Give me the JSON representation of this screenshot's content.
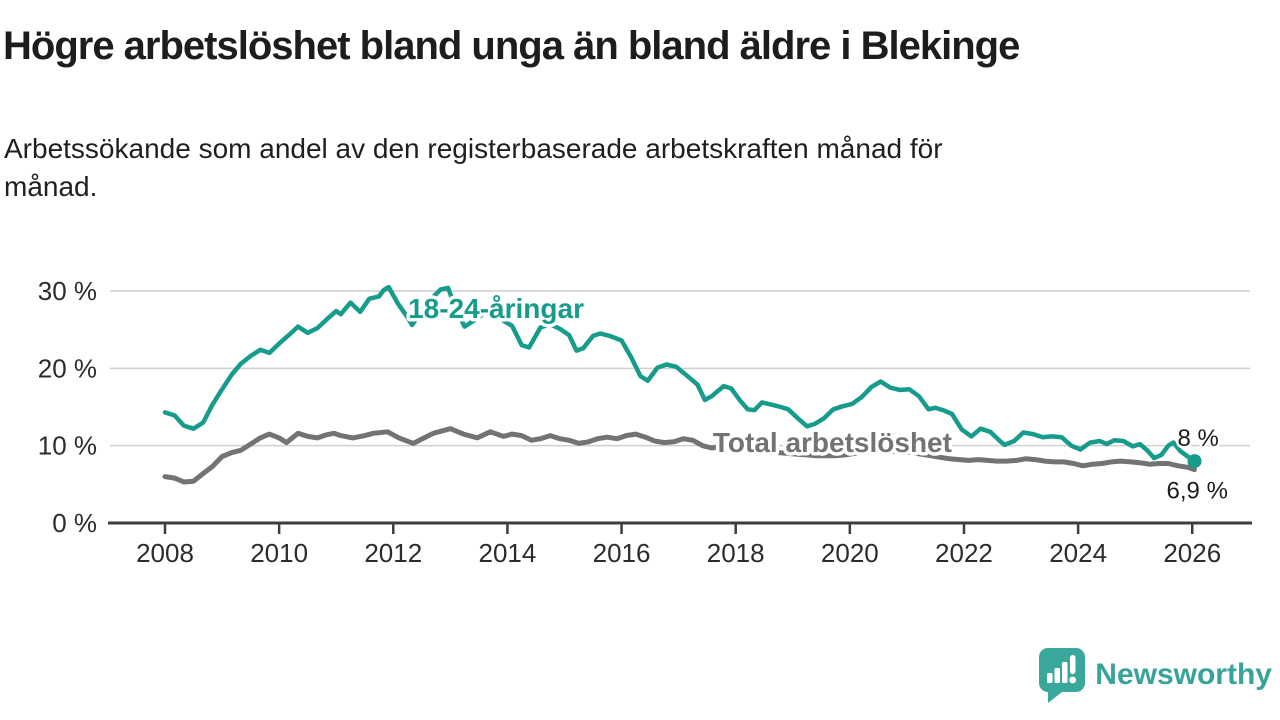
{
  "header": {
    "title": "Högre arbetslöshet bland unga än bland äldre i Blekinge",
    "subtitle_line1": "Arbetssökande som andel av den registerbaserade arbetskraften månad för",
    "subtitle_line2": "månad."
  },
  "footer": {
    "brand": "Newsworthy",
    "logo_icon": "bar-chart-speech-bubble"
  },
  "colors": {
    "young_series": "#179b8b",
    "total_series": "#737373",
    "grid": "#cfcfcf",
    "axis": "#3d3d3d",
    "tick_text": "#2c2c2c",
    "value_label_text": "#1c1c1c",
    "brand_teal": "#3aa79b"
  },
  "chart_data": {
    "type": "line",
    "title": "Högre arbetslöshet bland unga än bland äldre i Blekinge",
    "xlabel": "",
    "ylabel": "",
    "xlim": [
      2007.9,
      2027.0
    ],
    "ylim": [
      0,
      32
    ],
    "grid": "horizontal",
    "legend_position": "inline-labels",
    "x_ticks": [
      {
        "value": 2008,
        "label": "2008"
      },
      {
        "value": 2010,
        "label": "2010"
      },
      {
        "value": 2012,
        "label": "2012"
      },
      {
        "value": 2014,
        "label": "2014"
      },
      {
        "value": 2016,
        "label": "2016"
      },
      {
        "value": 2018,
        "label": "2018"
      },
      {
        "value": 2020,
        "label": "2020"
      },
      {
        "value": 2022,
        "label": "2022"
      },
      {
        "value": 2024,
        "label": "2024"
      },
      {
        "value": 2026,
        "label": "2026"
      }
    ],
    "y_ticks": [
      {
        "value": 0,
        "label": "0 %"
      },
      {
        "value": 10,
        "label": "10 %"
      },
      {
        "value": 20,
        "label": "20 %"
      },
      {
        "value": 30,
        "label": "30 %"
      }
    ],
    "series": [
      {
        "name": "Total arbetslöshet",
        "color": "#737373",
        "line_width": 5,
        "end_value": 6.9,
        "end_label": "6,9 %",
        "end_label_offset": [
          -28,
          29
        ],
        "end_dot": false,
        "label_pos": [
          2017.6,
          9.2
        ],
        "points": [
          [
            2008.0,
            6.0
          ],
          [
            2008.17,
            5.8
          ],
          [
            2008.33,
            5.3
          ],
          [
            2008.5,
            5.4
          ],
          [
            2008.67,
            6.4
          ],
          [
            2008.83,
            7.3
          ],
          [
            2009.0,
            8.6
          ],
          [
            2009.17,
            9.1
          ],
          [
            2009.33,
            9.4
          ],
          [
            2009.5,
            10.2
          ],
          [
            2009.67,
            11.0
          ],
          [
            2009.83,
            11.5
          ],
          [
            2010.0,
            11.0
          ],
          [
            2010.13,
            10.4
          ],
          [
            2010.33,
            11.6
          ],
          [
            2010.5,
            11.2
          ],
          [
            2010.67,
            11.0
          ],
          [
            2010.83,
            11.4
          ],
          [
            2010.96,
            11.6
          ],
          [
            2011.08,
            11.3
          ],
          [
            2011.29,
            11.0
          ],
          [
            2011.5,
            11.3
          ],
          [
            2011.65,
            11.6
          ],
          [
            2011.9,
            11.8
          ],
          [
            2012.1,
            11.0
          ],
          [
            2012.35,
            10.3
          ],
          [
            2012.54,
            11.0
          ],
          [
            2012.7,
            11.6
          ],
          [
            2013.0,
            12.2
          ],
          [
            2013.23,
            11.5
          ],
          [
            2013.47,
            11.0
          ],
          [
            2013.7,
            11.8
          ],
          [
            2013.93,
            11.2
          ],
          [
            2014.08,
            11.5
          ],
          [
            2014.25,
            11.3
          ],
          [
            2014.42,
            10.7
          ],
          [
            2014.58,
            10.9
          ],
          [
            2014.75,
            11.3
          ],
          [
            2014.92,
            10.9
          ],
          [
            2015.08,
            10.7
          ],
          [
            2015.25,
            10.3
          ],
          [
            2015.42,
            10.5
          ],
          [
            2015.58,
            10.9
          ],
          [
            2015.75,
            11.1
          ],
          [
            2015.92,
            10.9
          ],
          [
            2016.08,
            11.3
          ],
          [
            2016.25,
            11.5
          ],
          [
            2016.42,
            11.1
          ],
          [
            2016.58,
            10.6
          ],
          [
            2016.75,
            10.4
          ],
          [
            2016.92,
            10.5
          ],
          [
            2017.08,
            10.9
          ],
          [
            2017.25,
            10.7
          ],
          [
            2017.42,
            10.0
          ],
          [
            2017.58,
            9.7
          ],
          [
            2017.75,
            9.9
          ],
          [
            2017.92,
            9.8
          ],
          [
            2018.08,
            9.6
          ],
          [
            2018.25,
            9.4
          ],
          [
            2018.42,
            9.3
          ],
          [
            2018.58,
            9.2
          ],
          [
            2018.75,
            9.1
          ],
          [
            2018.92,
            9.0
          ],
          [
            2019.08,
            8.9
          ],
          [
            2019.25,
            8.8
          ],
          [
            2019.42,
            8.7
          ],
          [
            2019.58,
            8.7
          ],
          [
            2019.75,
            8.7
          ],
          [
            2019.92,
            8.8
          ],
          [
            2020.08,
            9.0
          ],
          [
            2020.25,
            9.3
          ],
          [
            2020.42,
            9.5
          ],
          [
            2020.58,
            9.4
          ],
          [
            2020.75,
            9.3
          ],
          [
            2020.92,
            9.2
          ],
          [
            2021.08,
            9.1
          ],
          [
            2021.25,
            8.9
          ],
          [
            2021.42,
            8.7
          ],
          [
            2021.58,
            8.5
          ],
          [
            2021.75,
            8.3
          ],
          [
            2021.92,
            8.2
          ],
          [
            2022.08,
            8.1
          ],
          [
            2022.25,
            8.2
          ],
          [
            2022.42,
            8.1
          ],
          [
            2022.58,
            8.0
          ],
          [
            2022.75,
            8.0
          ],
          [
            2022.92,
            8.1
          ],
          [
            2023.08,
            8.3
          ],
          [
            2023.25,
            8.2
          ],
          [
            2023.42,
            8.0
          ],
          [
            2023.58,
            7.9
          ],
          [
            2023.75,
            7.9
          ],
          [
            2023.92,
            7.7
          ],
          [
            2024.08,
            7.4
          ],
          [
            2024.25,
            7.6
          ],
          [
            2024.42,
            7.7
          ],
          [
            2024.58,
            7.9
          ],
          [
            2024.75,
            8.0
          ],
          [
            2024.92,
            7.9
          ],
          [
            2025.08,
            7.8
          ],
          [
            2025.25,
            7.6
          ],
          [
            2025.42,
            7.7
          ],
          [
            2025.58,
            7.7
          ],
          [
            2025.75,
            7.4
          ],
          [
            2025.92,
            7.2
          ],
          [
            2026.04,
            6.9
          ]
        ]
      },
      {
        "name": "18-24-åringar",
        "color": "#179b8b",
        "line_width": 4.5,
        "end_value": 8.0,
        "end_label": "8 %",
        "end_label_offset": [
          -17,
          -15
        ],
        "end_dot": true,
        "label_pos": [
          2012.26,
          26.5
        ],
        "points": [
          [
            2008.0,
            14.3
          ],
          [
            2008.17,
            13.9
          ],
          [
            2008.33,
            12.6
          ],
          [
            2008.5,
            12.2
          ],
          [
            2008.67,
            13.0
          ],
          [
            2008.83,
            15.3
          ],
          [
            2009.0,
            17.3
          ],
          [
            2009.17,
            19.2
          ],
          [
            2009.33,
            20.6
          ],
          [
            2009.5,
            21.6
          ],
          [
            2009.67,
            22.4
          ],
          [
            2009.83,
            22.0
          ],
          [
            2010.0,
            23.2
          ],
          [
            2010.17,
            24.3
          ],
          [
            2010.33,
            25.4
          ],
          [
            2010.5,
            24.6
          ],
          [
            2010.67,
            25.2
          ],
          [
            2010.83,
            26.3
          ],
          [
            2011.0,
            27.4
          ],
          [
            2011.08,
            27.0
          ],
          [
            2011.25,
            28.5
          ],
          [
            2011.42,
            27.3
          ],
          [
            2011.58,
            29.0
          ],
          [
            2011.75,
            29.3
          ],
          [
            2011.83,
            30.1
          ],
          [
            2011.92,
            30.5
          ],
          [
            2012.08,
            28.4
          ],
          [
            2012.25,
            26.6
          ],
          [
            2012.33,
            25.6
          ],
          [
            2012.5,
            27.4
          ],
          [
            2012.67,
            29.0
          ],
          [
            2012.83,
            30.2
          ],
          [
            2012.96,
            30.4
          ],
          [
            2013.08,
            28.0
          ],
          [
            2013.25,
            25.4
          ],
          [
            2013.42,
            26.2
          ],
          [
            2013.58,
            27.1
          ],
          [
            2013.75,
            27.4
          ],
          [
            2013.92,
            26.2
          ],
          [
            2014.08,
            25.5
          ],
          [
            2014.25,
            23.0
          ],
          [
            2014.38,
            22.7
          ],
          [
            2014.58,
            25.3
          ],
          [
            2014.75,
            25.7
          ],
          [
            2014.92,
            25.1
          ],
          [
            2015.08,
            24.3
          ],
          [
            2015.21,
            22.3
          ],
          [
            2015.33,
            22.6
          ],
          [
            2015.5,
            24.2
          ],
          [
            2015.63,
            24.5
          ],
          [
            2015.79,
            24.2
          ],
          [
            2016.0,
            23.6
          ],
          [
            2016.17,
            21.4
          ],
          [
            2016.33,
            19.0
          ],
          [
            2016.46,
            18.4
          ],
          [
            2016.63,
            20.1
          ],
          [
            2016.79,
            20.5
          ],
          [
            2016.96,
            20.2
          ],
          [
            2017.17,
            18.9
          ],
          [
            2017.33,
            17.9
          ],
          [
            2017.46,
            15.9
          ],
          [
            2017.58,
            16.4
          ],
          [
            2017.79,
            17.7
          ],
          [
            2017.92,
            17.4
          ],
          [
            2018.08,
            15.8
          ],
          [
            2018.21,
            14.7
          ],
          [
            2018.33,
            14.6
          ],
          [
            2018.46,
            15.6
          ],
          [
            2018.63,
            15.3
          ],
          [
            2018.79,
            15.0
          ],
          [
            2018.92,
            14.7
          ],
          [
            2019.08,
            13.6
          ],
          [
            2019.25,
            12.5
          ],
          [
            2019.38,
            12.8
          ],
          [
            2019.54,
            13.5
          ],
          [
            2019.71,
            14.7
          ],
          [
            2019.88,
            15.1
          ],
          [
            2020.04,
            15.4
          ],
          [
            2020.21,
            16.3
          ],
          [
            2020.38,
            17.6
          ],
          [
            2020.54,
            18.3
          ],
          [
            2020.71,
            17.5
          ],
          [
            2020.88,
            17.2
          ],
          [
            2021.04,
            17.3
          ],
          [
            2021.21,
            16.4
          ],
          [
            2021.38,
            14.7
          ],
          [
            2021.5,
            14.9
          ],
          [
            2021.63,
            14.6
          ],
          [
            2021.79,
            14.1
          ],
          [
            2021.96,
            12.1
          ],
          [
            2022.13,
            11.2
          ],
          [
            2022.29,
            12.2
          ],
          [
            2022.46,
            11.8
          ],
          [
            2022.63,
            10.6
          ],
          [
            2022.71,
            10.1
          ],
          [
            2022.88,
            10.6
          ],
          [
            2023.04,
            11.7
          ],
          [
            2023.21,
            11.5
          ],
          [
            2023.38,
            11.1
          ],
          [
            2023.54,
            11.2
          ],
          [
            2023.71,
            11.1
          ],
          [
            2023.88,
            10.0
          ],
          [
            2024.04,
            9.5
          ],
          [
            2024.21,
            10.4
          ],
          [
            2024.38,
            10.6
          ],
          [
            2024.5,
            10.2
          ],
          [
            2024.63,
            10.7
          ],
          [
            2024.79,
            10.6
          ],
          [
            2024.96,
            9.9
          ],
          [
            2025.08,
            10.2
          ],
          [
            2025.21,
            9.4
          ],
          [
            2025.33,
            8.4
          ],
          [
            2025.46,
            8.8
          ],
          [
            2025.58,
            10.0
          ],
          [
            2025.67,
            10.4
          ],
          [
            2025.79,
            9.3
          ],
          [
            2025.92,
            8.6
          ],
          [
            2026.04,
            8.0
          ]
        ]
      }
    ]
  }
}
